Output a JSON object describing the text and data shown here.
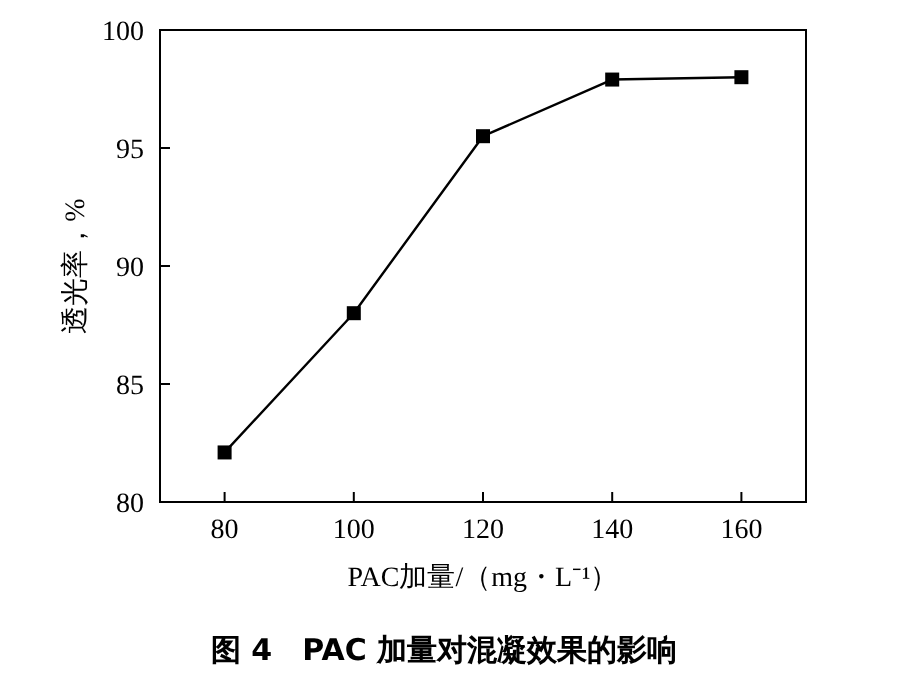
{
  "chart_data": {
    "type": "line",
    "title": "图 4　PAC 加量对混凝效果的影响",
    "xlabel": "PAC加量/（mg・L⁻¹）",
    "ylabel": "透光率，%",
    "x": [
      80,
      100,
      120,
      140,
      160
    ],
    "series": [
      {
        "color": "#000000",
        "values": [
          82.1,
          88.0,
          95.5,
          97.9,
          98.0
        ]
      }
    ],
    "xlim": [
      70,
      170
    ],
    "xticks": [
      80,
      100,
      120,
      140,
      160
    ],
    "ylim": [
      80,
      100
    ],
    "yticks": [
      80,
      85,
      90,
      95,
      100
    ],
    "grid": false,
    "marker": "square",
    "line_style": "solid"
  }
}
